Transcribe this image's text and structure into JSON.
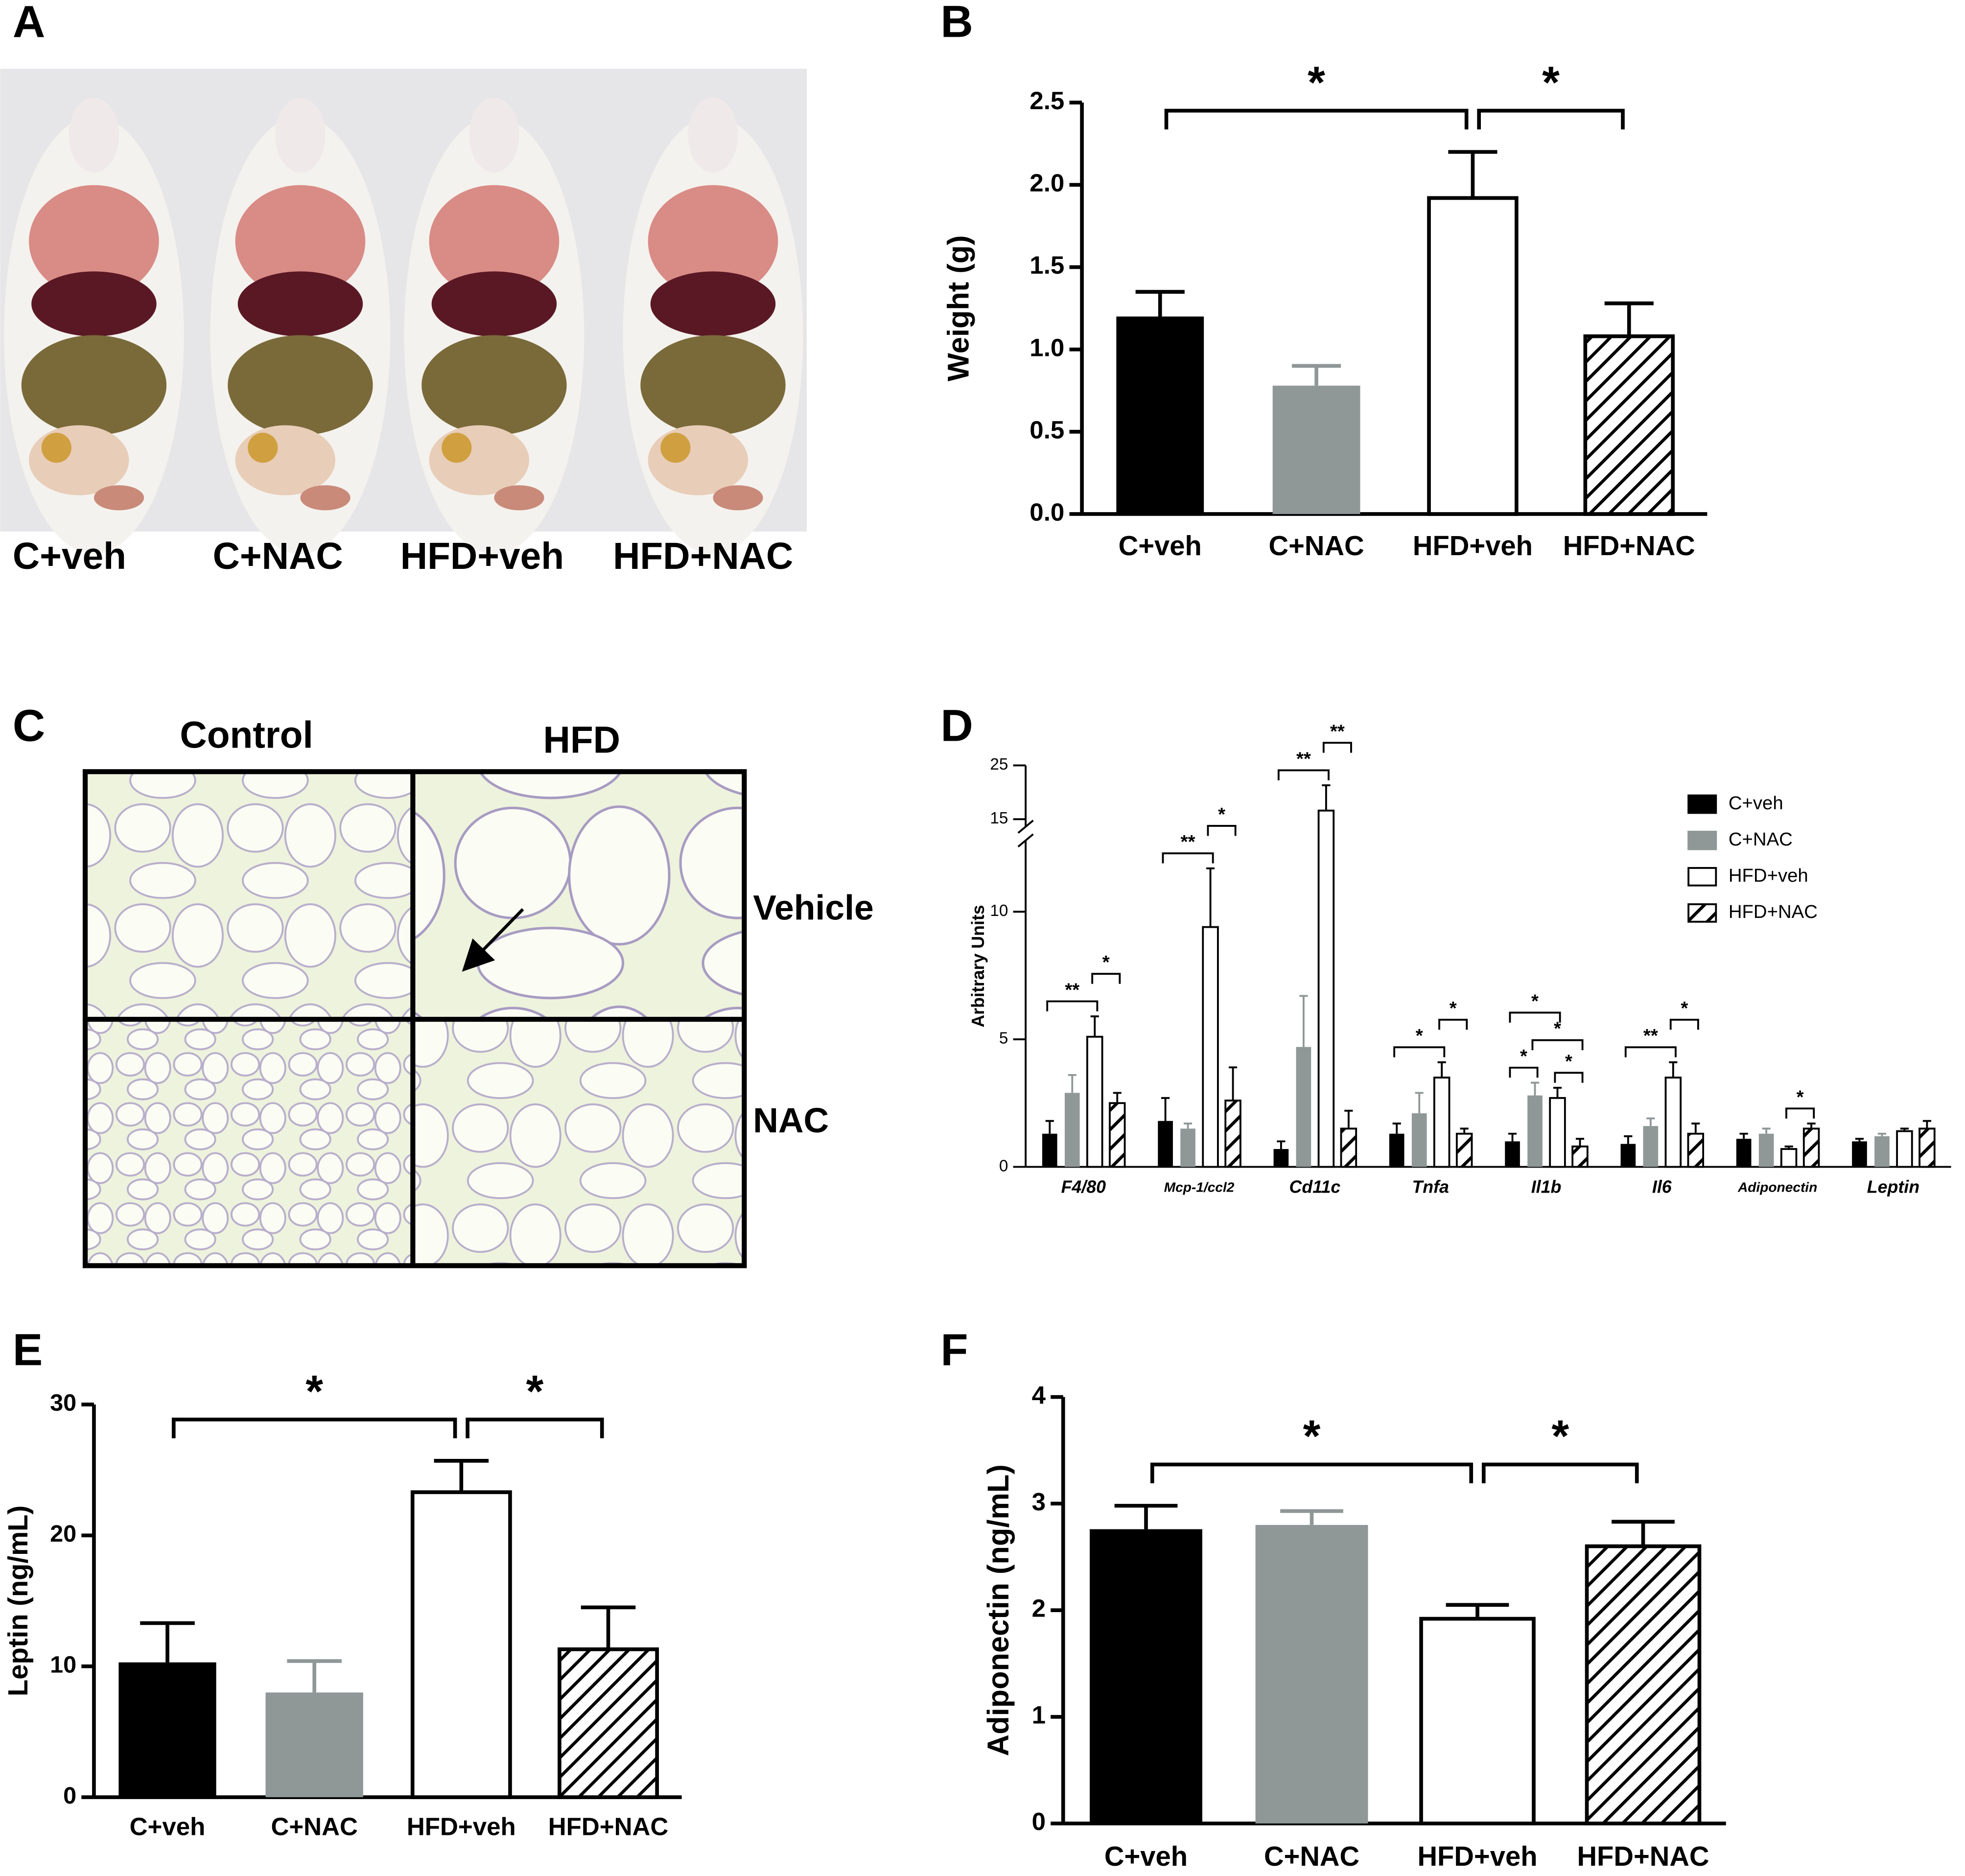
{
  "panels": {
    "A": {
      "letter": "A",
      "labels": [
        "C+veh",
        "C+NAC",
        "HFD+veh",
        "HFD+NAC"
      ]
    },
    "C": {
      "letter": "C",
      "columns": [
        "Control",
        "HFD"
      ],
      "rows": [
        "Vehicle",
        "NAC"
      ]
    }
  },
  "chart_data": [
    {
      "type": "bar",
      "panel": "B",
      "y_label": "Weight (g)",
      "categories": [
        "C+veh",
        "C+NAC",
        "HFD+veh",
        "HFD+NAC"
      ],
      "values": [
        1.2,
        0.78,
        1.92,
        1.08
      ],
      "errors": [
        0.15,
        0.12,
        0.28,
        0.2
      ],
      "colors": [
        "#000000",
        "#8f9797",
        "#ffffff",
        "#ffffff"
      ],
      "hatched": [
        false,
        false,
        false,
        true
      ],
      "ylim": [
        0,
        2.5
      ],
      "yticks": [
        {
          "value": 0,
          "label": "0.0"
        },
        0.5,
        {
          "value": 1,
          "label": "1.0"
        },
        1.5,
        {
          "value": 2,
          "label": "2.0"
        },
        2.5
      ],
      "significance": [
        {
          "from": 0,
          "to": 2,
          "label": "*"
        },
        {
          "from": 2,
          "to": 3,
          "label": "*"
        }
      ]
    },
    {
      "type": "grouped_bar",
      "panel": "D",
      "y_label": "Arbitrary Units",
      "categories": [
        "F4/80",
        "Mcp-1/ccl2",
        "Cd11c",
        "Tnfa",
        "Il1b",
        "Il6",
        "Adiponectin",
        "Leptin"
      ],
      "series": [
        {
          "name": "C+veh",
          "color": "#000000",
          "hatched": false,
          "values": [
            1.3,
            1.8,
            0.7,
            1.3,
            1.0,
            0.9,
            1.1,
            1.0
          ],
          "errors": [
            0.5,
            0.9,
            0.3,
            0.4,
            0.3,
            0.3,
            0.2,
            0.1
          ]
        },
        {
          "name": "C+NAC",
          "color": "#8f9797",
          "hatched": false,
          "values": [
            2.9,
            1.5,
            4.7,
            2.1,
            2.8,
            1.6,
            1.3,
            1.2
          ],
          "errors": [
            0.7,
            0.2,
            2.0,
            0.8,
            0.5,
            0.3,
            0.2,
            0.1
          ]
        },
        {
          "name": "HFD+veh",
          "color": "#ffffff",
          "hatched": false,
          "values": [
            5.1,
            9.4,
            16.6,
            3.5,
            2.7,
            3.5,
            0.7,
            1.4
          ],
          "errors": [
            0.8,
            2.3,
            4.7,
            0.6,
            0.4,
            0.6,
            0.1,
            0.1
          ]
        },
        {
          "name": "HFD+NAC",
          "color": "#ffffff",
          "hatched": true,
          "values": [
            2.5,
            2.6,
            1.5,
            1.3,
            0.8,
            1.3,
            1.5,
            1.5
          ],
          "errors": [
            0.4,
            1.3,
            0.7,
            0.2,
            0.3,
            0.4,
            0.2,
            0.3
          ]
        }
      ],
      "ylim": [
        0,
        25
      ],
      "y_break": [
        12.5,
        15
      ],
      "yticks": [
        0,
        5,
        10,
        15,
        25
      ],
      "legend": "upper right",
      "significance": [
        {
          "category": 0,
          "from": 0,
          "to": 2,
          "label": "**"
        },
        {
          "category": 0,
          "from": 2,
          "to": 3,
          "label": "*"
        },
        {
          "category": 1,
          "from": 0,
          "to": 2,
          "label": "**"
        },
        {
          "category": 1,
          "from": 2,
          "to": 3,
          "label": "*"
        },
        {
          "category": 2,
          "from": 0,
          "to": 2,
          "label": "**"
        },
        {
          "category": 2,
          "from": 2,
          "to": 3,
          "label": "**"
        },
        {
          "category": 3,
          "from": 0,
          "to": 2,
          "label": "*"
        },
        {
          "category": 3,
          "from": 2,
          "to": 3,
          "label": "*"
        },
        {
          "category": 4,
          "from": 2,
          "to": 3,
          "label": "*"
        },
        {
          "category": 4,
          "from": 0,
          "to": 1,
          "label": "*"
        },
        {
          "category": 4,
          "from": 1,
          "to": 3,
          "label": "*"
        },
        {
          "category": 4,
          "from": 0,
          "to": 2,
          "label": "*"
        },
        {
          "category": 5,
          "from": 0,
          "to": 2,
          "label": "**"
        },
        {
          "category": 5,
          "from": 2,
          "to": 3,
          "label": "*"
        },
        {
          "category": 6,
          "from": 2,
          "to": 3,
          "label": "*"
        }
      ]
    },
    {
      "type": "bar",
      "panel": "E",
      "y_label": "Leptin (ng/mL)",
      "categories": [
        "C+veh",
        "C+NAC",
        "HFD+veh",
        "HFD+NAC"
      ],
      "values": [
        10.3,
        8.0,
        23.3,
        11.3
      ],
      "errors": [
        3.0,
        2.4,
        2.4,
        3.2
      ],
      "colors": [
        "#000000",
        "#8f9797",
        "#ffffff",
        "#ffffff"
      ],
      "hatched": [
        false,
        false,
        false,
        true
      ],
      "ylim": [
        0,
        30
      ],
      "yticks": [
        0,
        10,
        20,
        30
      ],
      "significance": [
        {
          "from": 0,
          "to": 2,
          "label": "*"
        },
        {
          "from": 2,
          "to": 3,
          "label": "*"
        }
      ]
    },
    {
      "type": "bar",
      "panel": "F",
      "y_label": "Adiponectin  (ng/mL)",
      "categories": [
        "C+veh",
        "C+NAC",
        "HFD+veh",
        "HFD+NAC"
      ],
      "values": [
        2.76,
        2.8,
        1.92,
        2.6
      ],
      "errors": [
        0.22,
        0.13,
        0.13,
        0.23
      ],
      "colors": [
        "#000000",
        "#8f9797",
        "#ffffff",
        "#ffffff"
      ],
      "hatched": [
        false,
        false,
        false,
        true
      ],
      "ylim": [
        0,
        4
      ],
      "yticks": [
        0,
        1,
        2,
        3,
        4
      ],
      "significance": [
        {
          "from": 0,
          "to": 2,
          "label": "*"
        },
        {
          "from": 2,
          "to": 3,
          "label": "*"
        }
      ]
    }
  ]
}
